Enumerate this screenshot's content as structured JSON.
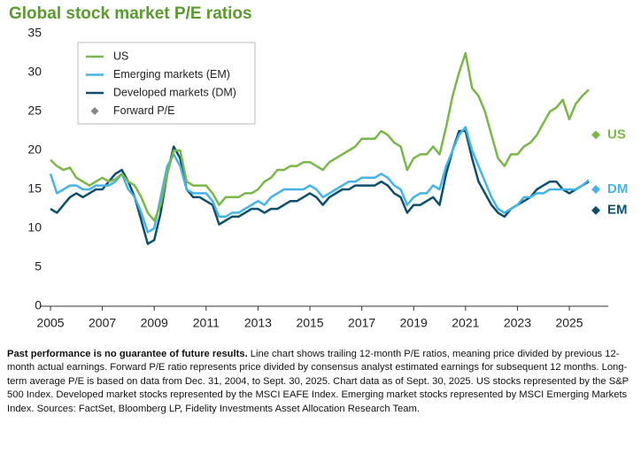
{
  "chart_data": {
    "type": "line",
    "title": "Global stock market P/E ratios",
    "x": [
      2005,
      2005.25,
      2005.5,
      2005.75,
      2006,
      2006.25,
      2006.5,
      2006.75,
      2007,
      2007.25,
      2007.5,
      2007.75,
      2008,
      2008.25,
      2008.5,
      2008.75,
      2009,
      2009.25,
      2009.5,
      2009.75,
      2010,
      2010.25,
      2010.5,
      2010.75,
      2011,
      2011.25,
      2011.5,
      2011.75,
      2012,
      2012.25,
      2012.5,
      2012.75,
      2013,
      2013.25,
      2013.5,
      2013.75,
      2014,
      2014.25,
      2014.5,
      2014.75,
      2015,
      2015.25,
      2015.5,
      2015.75,
      2016,
      2016.25,
      2016.5,
      2016.75,
      2017,
      2017.25,
      2017.5,
      2017.75,
      2018,
      2018.25,
      2018.5,
      2018.75,
      2019,
      2019.25,
      2019.5,
      2019.75,
      2020,
      2020.25,
      2020.5,
      2020.75,
      2021,
      2021.25,
      2021.5,
      2021.75,
      2022,
      2022.25,
      2022.5,
      2022.75,
      2023,
      2023.25,
      2023.5,
      2023.75,
      2024,
      2024.25,
      2024.5,
      2024.75,
      2025,
      2025.25,
      2025.5,
      2025.75
    ],
    "series": [
      {
        "name": "US",
        "color": "#7ab648",
        "values": [
          18.8,
          18,
          17.5,
          17.8,
          16.5,
          16,
          15.5,
          16,
          16.5,
          16,
          16.3,
          17,
          16,
          15.5,
          14,
          12,
          11,
          13,
          17,
          20,
          20,
          16,
          15.5,
          15.5,
          15.5,
          14.5,
          13,
          14,
          14,
          14,
          14.5,
          14.5,
          15,
          16,
          16.5,
          17.5,
          17.5,
          18,
          18,
          18.5,
          18.5,
          18,
          17.5,
          18.5,
          19,
          19.5,
          20,
          20.5,
          21.5,
          21.5,
          21.5,
          22.5,
          22,
          21,
          20.5,
          17.5,
          19,
          19.5,
          19.5,
          20.5,
          19.5,
          23,
          27,
          30,
          32.5,
          28,
          27,
          25,
          22,
          19,
          18,
          19.5,
          19.5,
          20.5,
          21,
          22,
          23.5,
          25,
          25.5,
          26.5,
          24,
          26,
          27,
          27.8
        ]
      },
      {
        "name": "Emerging markets (EM)",
        "color": "#44b4e8",
        "values": [
          17,
          14.5,
          15,
          15.5,
          15.5,
          15,
          15,
          15.5,
          15.5,
          15.5,
          16,
          17,
          15,
          14,
          12,
          9.5,
          10,
          14,
          18,
          19.5,
          18,
          15,
          14.5,
          14.5,
          14.5,
          13.5,
          11.5,
          11.5,
          12,
          12,
          12.5,
          13,
          13.5,
          13,
          14,
          14.5,
          15,
          15,
          15,
          15,
          15.5,
          15,
          14,
          14.5,
          15,
          15.5,
          16,
          16,
          16.5,
          16.5,
          16.5,
          17,
          16.5,
          15.5,
          15,
          13,
          14,
          14.5,
          14.5,
          15.5,
          15,
          18,
          20,
          22,
          23,
          20,
          18,
          16,
          14,
          12.5,
          12,
          12.5,
          13,
          14,
          14,
          14.5,
          14.5,
          15,
          15,
          15,
          15,
          15,
          15.5,
          16.2
        ]
      },
      {
        "name": "Developed markets (DM)",
        "color": "#0b4f6c",
        "values": [
          12.5,
          12,
          13,
          14,
          14.5,
          14,
          14.5,
          15,
          15,
          16,
          17,
          17.5,
          16,
          14,
          11,
          8,
          8.5,
          12,
          17,
          20.5,
          19,
          15,
          14,
          14,
          13.5,
          13,
          10.5,
          11,
          11.5,
          11.5,
          12,
          12.5,
          12.5,
          12,
          12.5,
          12.5,
          13,
          13.5,
          13.5,
          14,
          14.5,
          14,
          13,
          14,
          14.5,
          15,
          15,
          15.5,
          15.5,
          15.5,
          15.5,
          16,
          15.5,
          14.5,
          14,
          12,
          13,
          13,
          13.5,
          14,
          13,
          17,
          20,
          22.5,
          22.5,
          19,
          16,
          14.5,
          13,
          12,
          11.5,
          12.5,
          13,
          13.5,
          14,
          15,
          15.5,
          16,
          16,
          15,
          14.5,
          15,
          15.5,
          16
        ]
      }
    ],
    "forward_legend": "Forward P/E",
    "forward_pe": [
      {
        "label": "US",
        "value": 22,
        "color": "#7ab648"
      },
      {
        "label": "DM",
        "value": 15,
        "color": "#44b4e8"
      },
      {
        "label": "EM",
        "value": 12.3,
        "color": "#0b4f6c"
      }
    ],
    "xlim": [
      2005,
      2026.5
    ],
    "xticks": [
      2005,
      2007,
      2009,
      2011,
      2013,
      2015,
      2017,
      2019,
      2021,
      2023,
      2025
    ],
    "ylim": [
      0,
      35
    ],
    "yticks": [
      0,
      5,
      10,
      15,
      20,
      25,
      30,
      35
    ]
  },
  "footnote": {
    "bold": "Past performance is no guarantee of future results.",
    "text": "Line chart shows trailing 12-month P/E ratios, meaning price divided by previous 12-month actual earnings. Forward P/E ratio represents price divided by consensus analyst estimated earnings for subsequent 12 months. Long-term average P/E is based on data from Dec. 31, 2004, to Sept. 30, 2025. Chart data as of Sept. 30, 2025. US stocks represented by the S&P 500 Index. Developed market stocks represented by the MSCI EAFE Index. Emerging market stocks represented by MSCI Emerging Markets Index. Sources: FactSet, Bloomberg LP, Fidelity Investments Asset Allocation Research Team."
  }
}
